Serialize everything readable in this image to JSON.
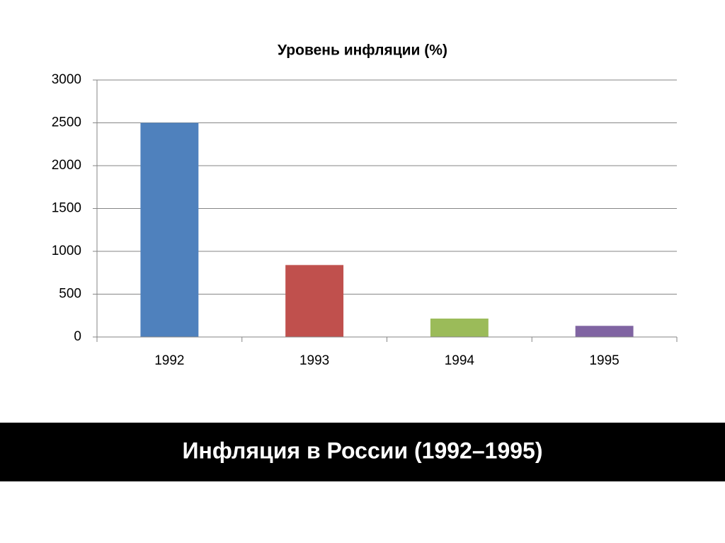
{
  "chart_data": {
    "type": "bar",
    "title": "Уровень инфляции (%)",
    "categories": [
      "1992",
      "1993",
      "1994",
      "1995"
    ],
    "values": [
      2500,
      840,
      215,
      130
    ],
    "colors": [
      "#4f81bd",
      "#c0504d",
      "#9bbb59",
      "#8064a2"
    ],
    "ylim": [
      0,
      3000
    ],
    "yticks": [
      0,
      500,
      1000,
      1500,
      2000,
      2500,
      3000
    ],
    "grid": true
  },
  "banner": {
    "title": "Инфляция в России (1992–1995)"
  }
}
